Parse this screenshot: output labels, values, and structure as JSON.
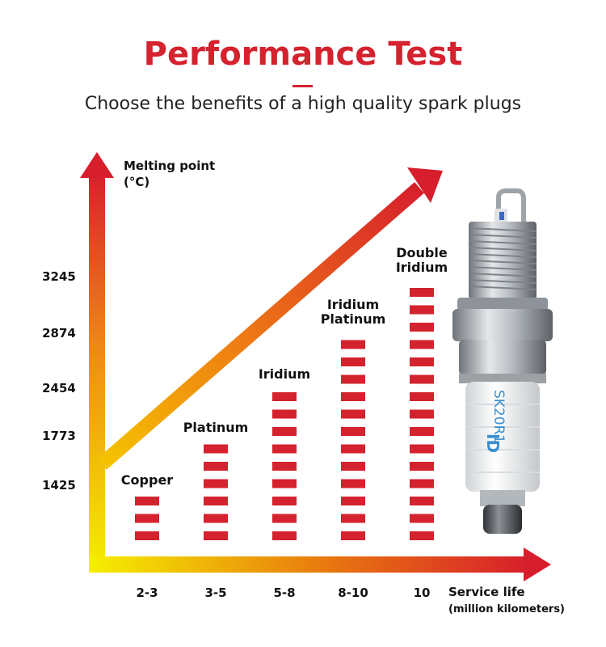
{
  "header": {
    "title": "Performance Test",
    "subtitle": "Choose the benefits of a high quality spark plugs"
  },
  "colors": {
    "title_red": "#d4222e",
    "bar_red": "#d4222e",
    "gradient_top": "#d71e2c",
    "gradient_bottom": "#f5ef00"
  },
  "illustration": {
    "product": "spark plug",
    "engraved_text": [
      "SK20R1",
      "ID"
    ]
  },
  "chart_data": {
    "type": "bar",
    "y_axis_label": [
      "Melting point",
      "(°C)"
    ],
    "x_axis_label": [
      "Service life",
      "(million kilometers)"
    ],
    "y_ticks": [
      "3245",
      "2874",
      "2454",
      "1773",
      "1425"
    ],
    "categories": [
      "2-3",
      "3-5",
      "5-8",
      "8-10",
      "10"
    ],
    "materials": [
      [
        "Copper"
      ],
      [
        "Platinum"
      ],
      [
        "Iridium"
      ],
      [
        "Iridium",
        "Platinum"
      ],
      [
        "Double",
        "Iridium"
      ]
    ],
    "values": [
      1425,
      1773,
      2454,
      2874,
      3245
    ],
    "grid": false,
    "legend": "none"
  }
}
